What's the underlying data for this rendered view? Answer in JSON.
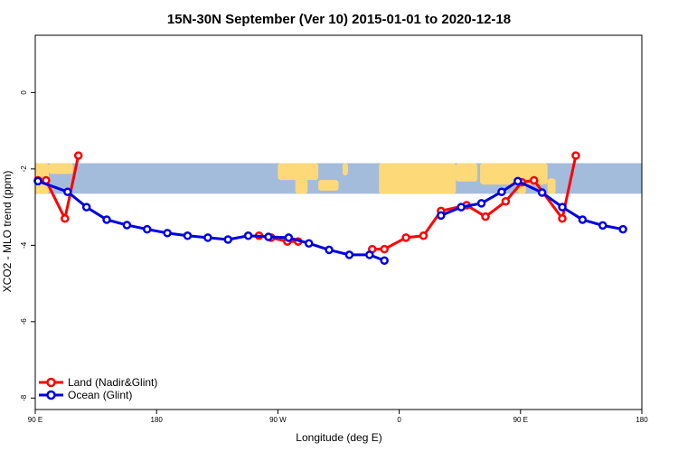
{
  "chart_data": {
    "type": "line",
    "title": "15N-30N September (Ver 10)   2015-01-01 to 2020-12-18",
    "xlabel": "Longitude (deg E)",
    "ylabel": "XCO2 - MLO trend (ppm)",
    "xlim": [
      90,
      540
    ],
    "ylim": [
      -8.3,
      1.5
    ],
    "xticks": [
      {
        "value": 90,
        "label": "90 E"
      },
      {
        "value": 180,
        "label": "180"
      },
      {
        "value": 270,
        "label": "90 W"
      },
      {
        "value": 360,
        "label": "0"
      },
      {
        "value": 450,
        "label": "90 E"
      },
      {
        "value": 540,
        "label": "180"
      }
    ],
    "yticks": [
      {
        "value": 0,
        "label": "0"
      },
      {
        "value": -2,
        "label": "-2"
      },
      {
        "value": -4,
        "label": "-4"
      },
      {
        "value": -6,
        "label": "-6"
      },
      {
        "value": -8,
        "label": "-8"
      }
    ],
    "map_band": {
      "ymin": -2.65,
      "ymax": -1.85,
      "ocean_color": "#a4bcdc",
      "land_color": "#fed978"
    },
    "legend": {
      "position": "bottom-left"
    },
    "series": [
      {
        "name": "Land (Nadir&Glint)",
        "color": "#ff0000",
        "segments": [
          [
            [
              92,
              -2.3
            ],
            [
              98,
              -2.3
            ],
            [
              112,
              -3.3
            ],
            [
              122,
              -1.65
            ]
          ],
          [
            [
              256,
              -3.75
            ],
            [
              265,
              -3.8
            ],
            [
              277,
              -3.9
            ],
            [
              285,
              -3.9
            ]
          ],
          [
            [
              340,
              -4.1
            ],
            [
              349,
              -4.1
            ],
            [
              365,
              -3.8
            ],
            [
              378,
              -3.75
            ],
            [
              391,
              -3.1
            ],
            [
              410,
              -2.95
            ],
            [
              424,
              -3.25
            ],
            [
              439,
              -2.85
            ],
            [
              451,
              -2.35
            ],
            [
              460,
              -2.3
            ],
            [
              481,
              -3.3
            ],
            [
              491,
              -1.65
            ]
          ]
        ]
      },
      {
        "name": "Ocean (Glint)",
        "color": "#0000e0",
        "segments": [
          [
            [
              92,
              -2.32
            ],
            [
              114,
              -2.6
            ],
            [
              128,
              -3.0
            ],
            [
              143,
              -3.33
            ],
            [
              158,
              -3.47
            ],
            [
              173,
              -3.58
            ],
            [
              188,
              -3.68
            ],
            [
              203,
              -3.75
            ],
            [
              218,
              -3.8
            ],
            [
              233,
              -3.85
            ],
            [
              248,
              -3.75
            ],
            [
              263,
              -3.78
            ],
            [
              278,
              -3.8
            ],
            [
              293,
              -3.95
            ],
            [
              308,
              -4.12
            ],
            [
              323,
              -4.25
            ],
            [
              338,
              -4.25
            ],
            [
              349,
              -4.4
            ]
          ],
          [
            [
              391,
              -3.22
            ],
            [
              406,
              -3.0
            ],
            [
              421,
              -2.9
            ],
            [
              436,
              -2.6
            ],
            [
              448,
              -2.32
            ],
            [
              466,
              -2.62
            ],
            [
              481,
              -3.0
            ],
            [
              496,
              -3.33
            ],
            [
              511,
              -3.48
            ],
            [
              526,
              -3.58
            ]
          ]
        ]
      }
    ]
  }
}
